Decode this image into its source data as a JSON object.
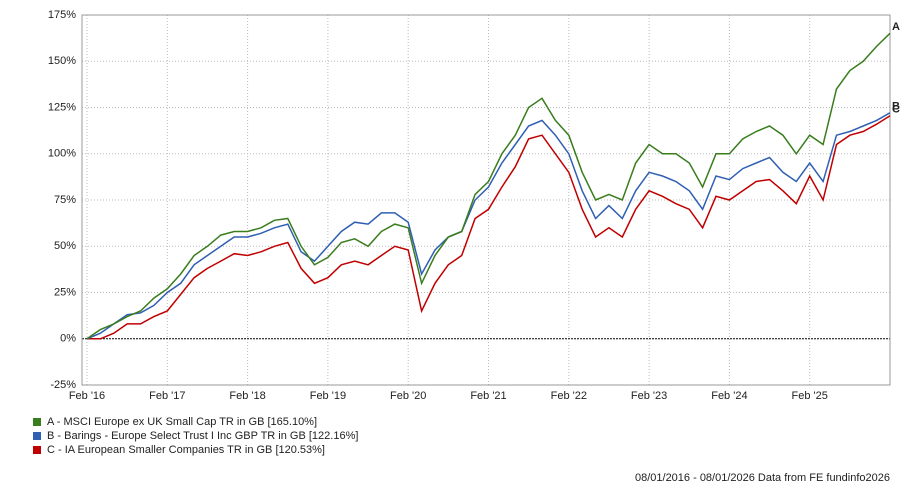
{
  "chart_data": {
    "type": "line",
    "categories": [
      "Feb '16",
      null,
      null,
      null,
      null,
      null,
      "Feb '17",
      null,
      null,
      null,
      null,
      null,
      "Feb '18",
      null,
      null,
      null,
      null,
      null,
      "Feb '19",
      null,
      null,
      null,
      null,
      null,
      "Feb '20",
      null,
      null,
      null,
      null,
      null,
      "Feb '21",
      null,
      null,
      null,
      null,
      null,
      "Feb '22",
      null,
      null,
      null,
      null,
      null,
      "Feb '23",
      null,
      null,
      null,
      null,
      null,
      "Feb '24",
      null,
      null,
      null,
      null,
      null,
      "Feb '25",
      null,
      null,
      null,
      null,
      null,
      null
    ],
    "series": [
      {
        "name": "A - MSCI Europe ex UK Small Cap TR in GB [165.10%]",
        "end_label": "A",
        "color": "#3a7d1e",
        "values": [
          0,
          5,
          8,
          12,
          15,
          22,
          27,
          35,
          45,
          50,
          56,
          58,
          58,
          60,
          64,
          65,
          50,
          40,
          44,
          52,
          54,
          50,
          58,
          62,
          60,
          30,
          45,
          55,
          58,
          78,
          85,
          100,
          110,
          125,
          130,
          118,
          110,
          90,
          75,
          78,
          75,
          95,
          105,
          100,
          100,
          95,
          82,
          100,
          100,
          108,
          112,
          115,
          110,
          100,
          110,
          105,
          135,
          145,
          150,
          158,
          165.1
        ]
      },
      {
        "name": "B - Barings - Europe Select Trust I Inc GBP TR in GB [122.16%]",
        "end_label": "B",
        "color": "#2f5fb3",
        "values": [
          0,
          3,
          8,
          13,
          14,
          18,
          25,
          30,
          40,
          45,
          50,
          55,
          55,
          57,
          60,
          62,
          47,
          42,
          50,
          58,
          63,
          62,
          68,
          68,
          63,
          35,
          48,
          55,
          58,
          75,
          82,
          95,
          105,
          115,
          118,
          110,
          100,
          80,
          65,
          72,
          65,
          80,
          90,
          88,
          85,
          80,
          70,
          88,
          86,
          92,
          95,
          98,
          90,
          85,
          95,
          85,
          110,
          112,
          115,
          118,
          122.16
        ]
      },
      {
        "name": "C - IA European Smaller Companies TR in GB [120.53%]",
        "end_label": "C",
        "color": "#c00000",
        "values": [
          0,
          0,
          3,
          8,
          8,
          12,
          15,
          24,
          33,
          38,
          42,
          46,
          45,
          47,
          50,
          52,
          38,
          30,
          33,
          40,
          42,
          40,
          45,
          50,
          48,
          15,
          30,
          40,
          45,
          65,
          70,
          82,
          93,
          108,
          110,
          100,
          90,
          70,
          55,
          60,
          55,
          70,
          80,
          77,
          73,
          70,
          60,
          77,
          75,
          80,
          85,
          86,
          80,
          73,
          88,
          75,
          105,
          110,
          112,
          116,
          120.53
        ]
      }
    ],
    "ylim": [
      -25,
      175
    ],
    "yticks": [
      {
        "value": -25,
        "label": "-25%"
      },
      {
        "value": 0,
        "label": "0%"
      },
      {
        "value": 25,
        "label": "25%"
      },
      {
        "value": 50,
        "label": "50%"
      },
      {
        "value": 75,
        "label": "75%"
      },
      {
        "value": 100,
        "label": "100%"
      },
      {
        "value": 125,
        "label": "125%"
      },
      {
        "value": 150,
        "label": "150%"
      },
      {
        "value": 175,
        "label": "175%"
      }
    ],
    "grid": true,
    "footer": "08/01/2016 - 08/01/2026 Data from FE fundinfo2026"
  }
}
